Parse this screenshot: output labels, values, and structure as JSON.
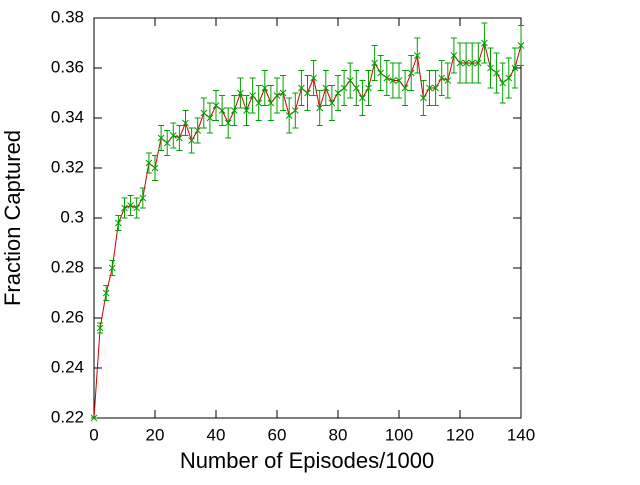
{
  "chart_data": {
    "type": "errorline",
    "xlabel": "Number of Episodes/1000",
    "ylabel": "Fraction Captured",
    "x": [
      0,
      2,
      4,
      6,
      8,
      10,
      12,
      14,
      16,
      18,
      20,
      22,
      24,
      26,
      28,
      30,
      32,
      34,
      36,
      38,
      40,
      42,
      44,
      46,
      48,
      50,
      52,
      54,
      56,
      58,
      60,
      62,
      64,
      66,
      68,
      70,
      72,
      74,
      76,
      78,
      80,
      82,
      84,
      86,
      88,
      90,
      92,
      94,
      96,
      98,
      100,
      102,
      104,
      106,
      108,
      110,
      112,
      114,
      116,
      118,
      120,
      122,
      124,
      126,
      128,
      130,
      132,
      134,
      136,
      138,
      140
    ],
    "series": [
      {
        "color": "#00a000",
        "line_color": "#cc0000",
        "values": [
          0.22,
          0.256,
          0.27,
          0.28,
          0.298,
          0.304,
          0.305,
          0.304,
          0.308,
          0.322,
          0.32,
          0.332,
          0.33,
          0.333,
          0.332,
          0.338,
          0.331,
          0.335,
          0.342,
          0.34,
          0.345,
          0.343,
          0.338,
          0.343,
          0.35,
          0.343,
          0.349,
          0.346,
          0.352,
          0.346,
          0.349,
          0.35,
          0.341,
          0.343,
          0.352,
          0.35,
          0.356,
          0.344,
          0.352,
          0.346,
          0.35,
          0.352,
          0.355,
          0.352,
          0.348,
          0.352,
          0.362,
          0.358,
          0.356,
          0.355,
          0.355,
          0.352,
          0.358,
          0.365,
          0.348,
          0.352,
          0.352,
          0.356,
          0.355,
          0.365,
          0.362,
          0.362,
          0.362,
          0.362,
          0.37,
          0.36,
          0.358,
          0.354,
          0.356,
          0.36,
          0.369
        ],
        "errors": [
          0,
          0.002,
          0.003,
          0.003,
          0.003,
          0.004,
          0.004,
          0.004,
          0.004,
          0.004,
          0.005,
          0.005,
          0.005,
          0.005,
          0.005,
          0.005,
          0.005,
          0.005,
          0.006,
          0.006,
          0.006,
          0.006,
          0.006,
          0.006,
          0.006,
          0.006,
          0.007,
          0.007,
          0.007,
          0.007,
          0.007,
          0.007,
          0.007,
          0.007,
          0.007,
          0.007,
          0.007,
          0.007,
          0.007,
          0.007,
          0.007,
          0.007,
          0.007,
          0.007,
          0.007,
          0.007,
          0.007,
          0.007,
          0.007,
          0.007,
          0.007,
          0.007,
          0.007,
          0.007,
          0.007,
          0.007,
          0.007,
          0.007,
          0.007,
          0.007,
          0.008,
          0.008,
          0.008,
          0.008,
          0.008,
          0.008,
          0.008,
          0.008,
          0.008,
          0.008,
          0.008
        ]
      }
    ],
    "xlim": [
      0,
      140
    ],
    "xticks": [
      0,
      20,
      40,
      60,
      80,
      100,
      120,
      140
    ],
    "ylim": [
      0.22,
      0.38
    ],
    "yticks": [
      0.22,
      0.24,
      0.26,
      0.28,
      0.3,
      0.32,
      0.34,
      0.36,
      0.38
    ]
  }
}
